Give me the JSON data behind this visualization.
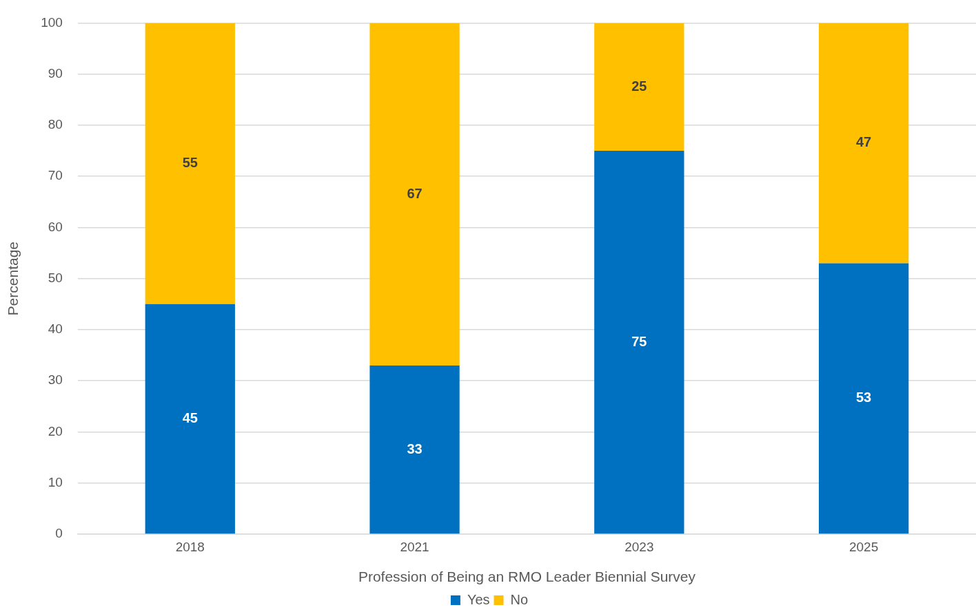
{
  "chart_data": {
    "type": "bar",
    "stacked": true,
    "xlabel": "Profession of Being an RMO Leader Biennial Survey",
    "ylabel": "Percentage",
    "categories": [
      "2018",
      "2021",
      "2023",
      "2025"
    ],
    "series": [
      {
        "name": "Yes",
        "color": "#0070c0",
        "values": [
          45,
          33,
          75,
          53
        ]
      },
      {
        "name": "No",
        "color": "#ffc000",
        "values": [
          55,
          67,
          25,
          47
        ]
      }
    ],
    "ylim": [
      0,
      100
    ],
    "yticks": [
      0,
      10,
      20,
      30,
      40,
      50,
      60,
      70,
      80,
      90,
      100
    ],
    "grid": "y",
    "legend": "bottom",
    "data_labels": true
  }
}
